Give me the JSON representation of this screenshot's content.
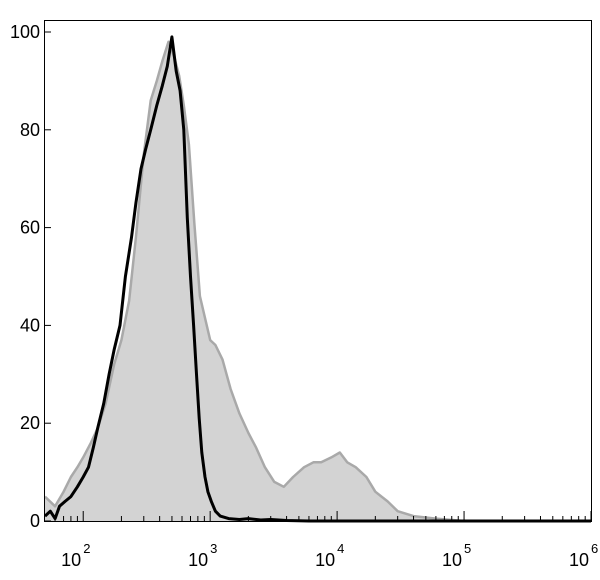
{
  "chart_data": {
    "type": "area",
    "title": "",
    "xlabel": "",
    "ylabel": "",
    "x_scale": "log",
    "xlim": [
      50,
      1000000
    ],
    "ylim": [
      0,
      100
    ],
    "grid": false,
    "y_ticks": [
      {
        "value": 0,
        "label": "0"
      },
      {
        "value": 20,
        "label": "20"
      },
      {
        "value": 40,
        "label": "40"
      },
      {
        "value": 60,
        "label": "60"
      },
      {
        "value": 80,
        "label": "80"
      },
      {
        "value": 100,
        "label": "100"
      }
    ],
    "x_ticks": [
      {
        "value": 100,
        "base": "10",
        "exp": "2"
      },
      {
        "value": 1000,
        "base": "10",
        "exp": "3"
      },
      {
        "value": 10000,
        "base": "10",
        "exp": "4"
      },
      {
        "value": 100000,
        "base": "10",
        "exp": "5"
      },
      {
        "value": 1000000,
        "base": "10",
        "exp": "6"
      }
    ],
    "series": [
      {
        "style": "filled",
        "fill": "#d3d3d3",
        "stroke": "#a9a9a9",
        "points": [
          [
            50,
            5
          ],
          [
            60,
            3
          ],
          [
            70,
            6
          ],
          [
            80,
            9
          ],
          [
            90,
            11
          ],
          [
            100,
            13
          ],
          [
            115,
            16
          ],
          [
            130,
            19
          ],
          [
            150,
            24
          ],
          [
            175,
            32
          ],
          [
            200,
            37
          ],
          [
            230,
            45
          ],
          [
            260,
            58
          ],
          [
            300,
            75
          ],
          [
            340,
            86
          ],
          [
            380,
            90
          ],
          [
            420,
            94
          ],
          [
            470,
            98
          ],
          [
            520,
            95
          ],
          [
            570,
            91
          ],
          [
            620,
            85
          ],
          [
            680,
            77
          ],
          [
            750,
            61
          ],
          [
            830,
            46
          ],
          [
            920,
            41
          ],
          [
            1000,
            37
          ],
          [
            1100,
            36
          ],
          [
            1250,
            33
          ],
          [
            1450,
            27
          ],
          [
            1700,
            22
          ],
          [
            2000,
            18
          ],
          [
            2300,
            15
          ],
          [
            2700,
            11
          ],
          [
            3200,
            8
          ],
          [
            3800,
            7
          ],
          [
            4500,
            9
          ],
          [
            5500,
            11
          ],
          [
            6500,
            12
          ],
          [
            7500,
            12
          ],
          [
            9000,
            13
          ],
          [
            10500,
            14
          ],
          [
            12000,
            12
          ],
          [
            14000,
            11
          ],
          [
            17000,
            9
          ],
          [
            20000,
            6
          ],
          [
            25000,
            4
          ],
          [
            30000,
            2
          ],
          [
            40000,
            1
          ],
          [
            60000,
            0.5
          ],
          [
            100000,
            0
          ],
          [
            1000000,
            0
          ]
        ]
      },
      {
        "style": "line",
        "stroke": "#000000",
        "points": [
          [
            50,
            1
          ],
          [
            55,
            2
          ],
          [
            60,
            0.5
          ],
          [
            65,
            3
          ],
          [
            72,
            4
          ],
          [
            80,
            5
          ],
          [
            90,
            7
          ],
          [
            100,
            9
          ],
          [
            110,
            11
          ],
          [
            120,
            15
          ],
          [
            130,
            19
          ],
          [
            145,
            24
          ],
          [
            160,
            30
          ],
          [
            175,
            35
          ],
          [
            195,
            40
          ],
          [
            215,
            50
          ],
          [
            240,
            58
          ],
          [
            260,
            65
          ],
          [
            285,
            72
          ],
          [
            310,
            76
          ],
          [
            340,
            80
          ],
          [
            380,
            85
          ],
          [
            420,
            89
          ],
          [
            460,
            93
          ],
          [
            500,
            99
          ],
          [
            540,
            92
          ],
          [
            580,
            88
          ],
          [
            620,
            80
          ],
          [
            660,
            62
          ],
          [
            700,
            50
          ],
          [
            740,
            40
          ],
          [
            780,
            30
          ],
          [
            820,
            21
          ],
          [
            860,
            14
          ],
          [
            910,
            9
          ],
          [
            960,
            6
          ],
          [
            1020,
            4
          ],
          [
            1100,
            2
          ],
          [
            1200,
            1
          ],
          [
            1400,
            0.5
          ],
          [
            1700,
            0.3
          ],
          [
            2000,
            0.5
          ],
          [
            2500,
            0.2
          ],
          [
            3000,
            0.3
          ],
          [
            4000,
            0.1
          ],
          [
            6000,
            0
          ],
          [
            1000000,
            0
          ]
        ]
      }
    ]
  }
}
